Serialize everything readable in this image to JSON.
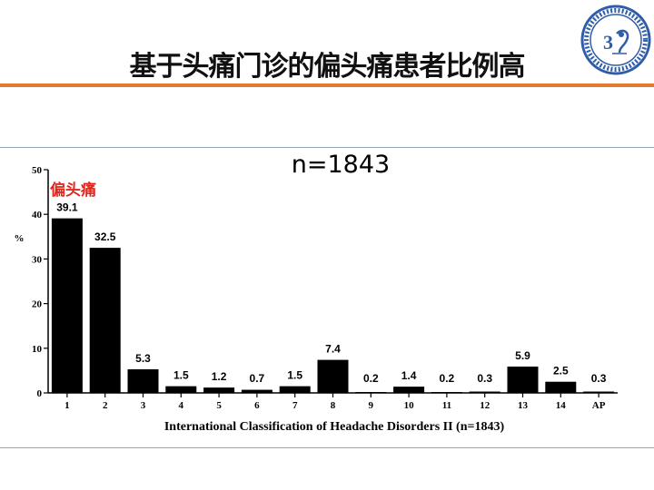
{
  "slide": {
    "title": "基于头痛门诊的偏头痛患者比例高",
    "logo_icon": "society-seal-icon",
    "accent_color": "#e07a2e",
    "logo_color": "#2f5da8"
  },
  "chart_data": {
    "type": "bar",
    "title": "n=1843",
    "categories": [
      "1",
      "2",
      "3",
      "4",
      "5",
      "6",
      "7",
      "8",
      "9",
      "10",
      "11",
      "12",
      "13",
      "14",
      "AP"
    ],
    "values": [
      39.1,
      32.5,
      5.3,
      1.5,
      1.2,
      0.7,
      1.5,
      7.4,
      0.2,
      1.4,
      0.2,
      0.3,
      5.9,
      2.5,
      0.3
    ],
    "data_labels": [
      "39.1",
      "32.5",
      "5.3",
      "1.5",
      "1.2",
      "0.7",
      "1.5",
      "7.4",
      "0.2",
      "1.4",
      "0.2",
      "0.3",
      "5.9",
      "2.5",
      "0.3"
    ],
    "xlabel": "International Classification of Headache Disorders II  (n=1843)",
    "ylabel": "%",
    "ylim": [
      0,
      50
    ],
    "yticks": [
      "0",
      "10",
      "20",
      "30",
      "40",
      "50"
    ],
    "annotation": "偏头痛",
    "bar_color": "#000000",
    "annotation_color": "#e0261d",
    "grid": false
  }
}
